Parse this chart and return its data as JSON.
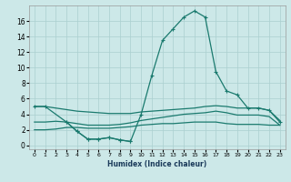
{
  "xlabel": "Humidex (Indice chaleur)",
  "bg_color": "#cce8e8",
  "grid_color": "#aacfcf",
  "line_color": "#1a7a6e",
  "xlim": [
    -0.5,
    23.5
  ],
  "ylim": [
    -0.5,
    18.0
  ],
  "yticks": [
    0,
    2,
    4,
    6,
    8,
    10,
    12,
    14,
    16
  ],
  "xticks": [
    0,
    1,
    2,
    3,
    4,
    5,
    6,
    7,
    8,
    9,
    10,
    11,
    12,
    13,
    14,
    15,
    16,
    17,
    18,
    19,
    20,
    21,
    22,
    23
  ],
  "main_x": [
    0,
    1,
    3,
    4,
    5,
    6,
    7,
    8,
    9,
    10,
    11,
    12,
    13,
    14,
    15,
    16,
    17,
    18,
    19,
    20,
    21,
    22,
    23
  ],
  "main_y": [
    5.0,
    5.0,
    3.0,
    1.8,
    0.8,
    0.8,
    1.0,
    0.7,
    0.5,
    4.0,
    9.0,
    13.5,
    15.0,
    16.5,
    17.3,
    16.5,
    9.5,
    7.0,
    6.5,
    4.8,
    4.8,
    4.5,
    3.0
  ],
  "upper_x": [
    0,
    1,
    2,
    3,
    4,
    5,
    6,
    7,
    8,
    9,
    10,
    11,
    12,
    13,
    14,
    15,
    16,
    17,
    18,
    19,
    20,
    21,
    22,
    23
  ],
  "upper_y": [
    5.0,
    5.0,
    4.8,
    4.6,
    4.4,
    4.3,
    4.2,
    4.1,
    4.1,
    4.1,
    4.3,
    4.4,
    4.5,
    4.6,
    4.7,
    4.8,
    5.0,
    5.1,
    5.0,
    4.8,
    4.8,
    4.8,
    4.5,
    3.2
  ],
  "mid_x": [
    0,
    1,
    2,
    3,
    4,
    5,
    6,
    7,
    8,
    9,
    10,
    11,
    12,
    13,
    14,
    15,
    16,
    17,
    18,
    19,
    20,
    21,
    22,
    23
  ],
  "mid_y": [
    3.0,
    3.0,
    3.1,
    3.0,
    2.8,
    2.6,
    2.6,
    2.6,
    2.7,
    2.9,
    3.2,
    3.4,
    3.6,
    3.8,
    4.0,
    4.1,
    4.2,
    4.4,
    4.2,
    3.9,
    3.9,
    3.9,
    3.7,
    2.6
  ],
  "low_x": [
    0,
    1,
    2,
    3,
    4,
    5,
    6,
    7,
    8,
    9,
    10,
    11,
    12,
    13,
    14,
    15,
    16,
    17,
    18,
    19,
    20,
    21,
    22,
    23
  ],
  "low_y": [
    2.0,
    2.0,
    2.1,
    2.3,
    2.3,
    2.2,
    2.2,
    2.2,
    2.3,
    2.4,
    2.6,
    2.7,
    2.8,
    2.8,
    2.9,
    3.0,
    3.0,
    3.0,
    2.8,
    2.7,
    2.7,
    2.7,
    2.6,
    2.6
  ],
  "zigzag_x": [
    3,
    4,
    5,
    6,
    7,
    8,
    9
  ],
  "zigzag_y": [
    3.0,
    1.8,
    0.8,
    0.8,
    1.0,
    0.7,
    0.5
  ]
}
